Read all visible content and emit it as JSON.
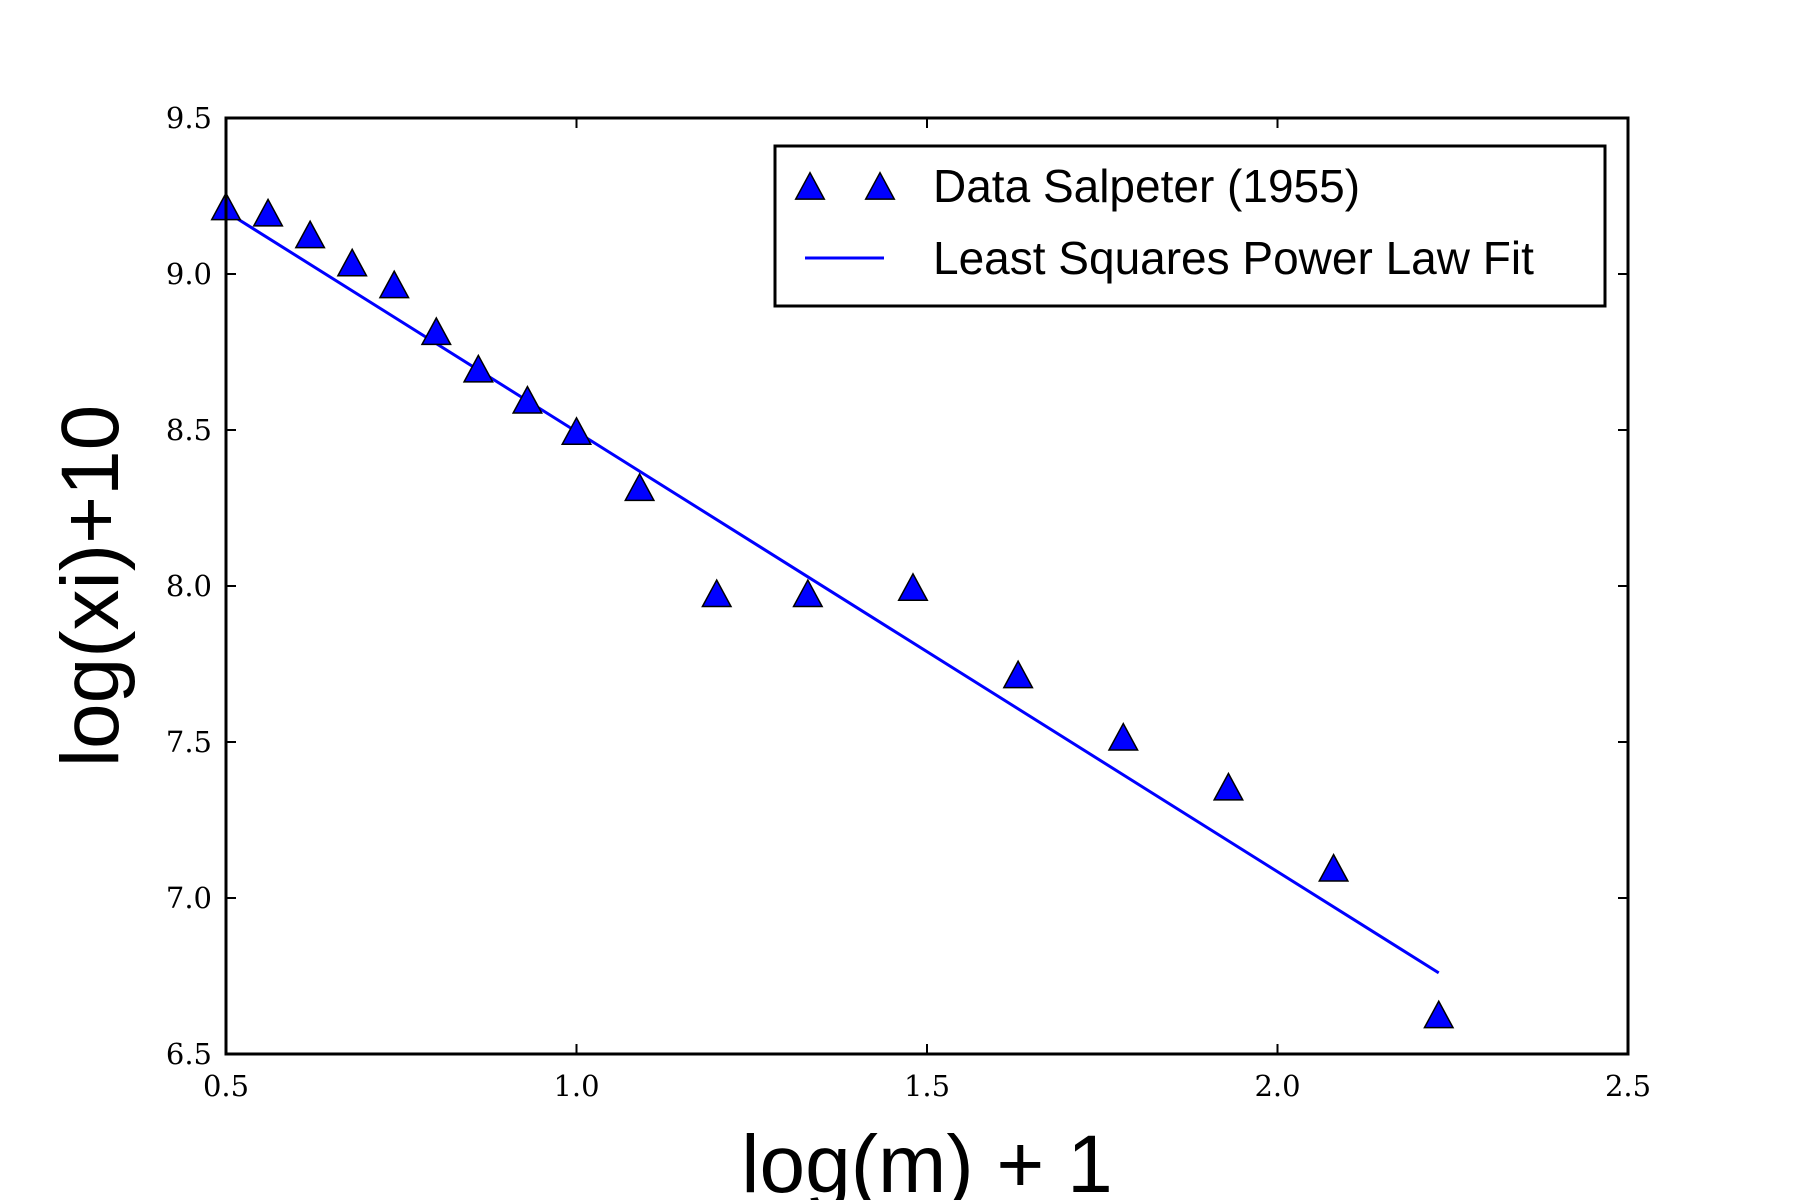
{
  "chart_data": {
    "type": "scatter",
    "xlabel": "log(m) + 1",
    "ylabel": "log(xi)+10",
    "xlim": [
      0.5,
      2.5
    ],
    "ylim": [
      6.5,
      9.5
    ],
    "xticks": [
      "0.5",
      "1.0",
      "1.5",
      "2.0",
      "2.5"
    ],
    "yticks": [
      "6.5",
      "7.0",
      "7.5",
      "8.0",
      "8.5",
      "9.0",
      "9.5"
    ],
    "grid": false,
    "legend": {
      "position": "top-right",
      "entries": [
        "Data Salpeter (1955)",
        "Least Squares Power Law Fit"
      ]
    },
    "series": [
      {
        "name": "Data Salpeter (1955)",
        "kind": "scatter",
        "marker": "triangle-up",
        "color": "#0000ff",
        "x": [
          0.5,
          0.56,
          0.62,
          0.68,
          0.74,
          0.8,
          0.86,
          0.93,
          1.0,
          1.09,
          1.2,
          1.33,
          1.48,
          1.63,
          1.78,
          1.93,
          2.08,
          2.23
        ],
        "y": [
          9.21,
          9.19,
          9.12,
          9.03,
          8.96,
          8.81,
          8.69,
          8.59,
          8.49,
          8.31,
          7.97,
          7.97,
          7.99,
          7.71,
          7.51,
          7.35,
          7.09,
          6.62
        ]
      },
      {
        "name": "Least Squares Power Law Fit",
        "kind": "line",
        "color": "#0000ff",
        "x": [
          0.5,
          2.23
        ],
        "y": [
          9.2,
          6.76
        ]
      }
    ]
  }
}
